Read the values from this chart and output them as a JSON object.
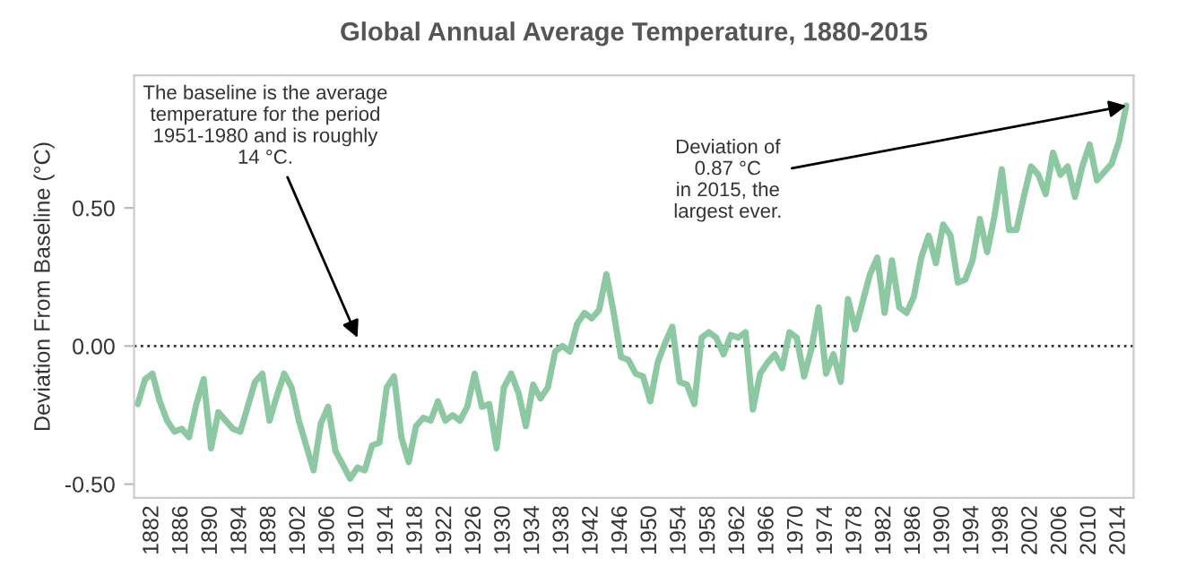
{
  "chart_data": {
    "type": "line",
    "title": "Global Annual Average Temperature, 1880-2015",
    "ylabel": "Deviation From Baseline (°C)",
    "x": [
      1880,
      1881,
      1882,
      1883,
      1884,
      1885,
      1886,
      1887,
      1888,
      1889,
      1890,
      1891,
      1892,
      1893,
      1894,
      1895,
      1896,
      1897,
      1898,
      1899,
      1900,
      1901,
      1902,
      1903,
      1904,
      1905,
      1906,
      1907,
      1908,
      1909,
      1910,
      1911,
      1912,
      1913,
      1914,
      1915,
      1916,
      1917,
      1918,
      1919,
      1920,
      1921,
      1922,
      1923,
      1924,
      1925,
      1926,
      1927,
      1928,
      1929,
      1930,
      1931,
      1932,
      1933,
      1934,
      1935,
      1936,
      1937,
      1938,
      1939,
      1940,
      1941,
      1942,
      1943,
      1944,
      1945,
      1946,
      1947,
      1948,
      1949,
      1950,
      1951,
      1952,
      1953,
      1954,
      1955,
      1956,
      1957,
      1958,
      1959,
      1960,
      1961,
      1962,
      1963,
      1964,
      1965,
      1966,
      1967,
      1968,
      1969,
      1970,
      1971,
      1972,
      1973,
      1974,
      1975,
      1976,
      1977,
      1978,
      1979,
      1980,
      1981,
      1982,
      1983,
      1984,
      1985,
      1986,
      1987,
      1988,
      1989,
      1990,
      1991,
      1992,
      1993,
      1994,
      1995,
      1996,
      1997,
      1998,
      1999,
      2000,
      2001,
      2002,
      2003,
      2004,
      2005,
      2006,
      2007,
      2008,
      2009,
      2010,
      2011,
      2012,
      2013,
      2014,
      2015
    ],
    "series": [
      {
        "color": "#8cc9a3",
        "values": [
          -0.21,
          -0.12,
          -0.1,
          -0.2,
          -0.27,
          -0.31,
          -0.3,
          -0.33,
          -0.21,
          -0.12,
          -0.37,
          -0.24,
          -0.27,
          -0.3,
          -0.31,
          -0.22,
          -0.13,
          -0.1,
          -0.27,
          -0.18,
          -0.1,
          -0.15,
          -0.27,
          -0.36,
          -0.45,
          -0.28,
          -0.22,
          -0.38,
          -0.43,
          -0.48,
          -0.44,
          -0.45,
          -0.36,
          -0.35,
          -0.15,
          -0.11,
          -0.33,
          -0.42,
          -0.29,
          -0.26,
          -0.27,
          -0.2,
          -0.27,
          -0.25,
          -0.27,
          -0.22,
          -0.1,
          -0.22,
          -0.21,
          -0.37,
          -0.15,
          -0.1,
          -0.17,
          -0.29,
          -0.14,
          -0.19,
          -0.15,
          -0.02,
          0.0,
          -0.02,
          0.08,
          0.12,
          0.1,
          0.13,
          0.26,
          0.12,
          -0.04,
          -0.05,
          -0.1,
          -0.11,
          -0.2,
          -0.06,
          0.01,
          0.07,
          -0.13,
          -0.14,
          -0.21,
          0.03,
          0.05,
          0.03,
          -0.03,
          0.04,
          0.03,
          0.05,
          -0.23,
          -0.1,
          -0.06,
          -0.03,
          -0.08,
          0.05,
          0.03,
          -0.11,
          -0.01,
          0.14,
          -0.1,
          -0.03,
          -0.13,
          0.17,
          0.06,
          0.16,
          0.26,
          0.32,
          0.12,
          0.31,
          0.14,
          0.12,
          0.18,
          0.32,
          0.4,
          0.3,
          0.44,
          0.4,
          0.23,
          0.24,
          0.31,
          0.46,
          0.34,
          0.47,
          0.64,
          0.42,
          0.42,
          0.54,
          0.65,
          0.62,
          0.55,
          0.7,
          0.62,
          0.65,
          0.54,
          0.65,
          0.73,
          0.6,
          0.63,
          0.66,
          0.74,
          0.87
        ]
      }
    ],
    "xlim": [
      1879.5,
      2016
    ],
    "xticks": [
      1882,
      1886,
      1890,
      1894,
      1898,
      1902,
      1906,
      1910,
      1914,
      1918,
      1922,
      1926,
      1930,
      1934,
      1938,
      1942,
      1946,
      1950,
      1954,
      1958,
      1962,
      1966,
      1970,
      1974,
      1978,
      1982,
      1986,
      1990,
      1994,
      1998,
      2002,
      2006,
      2010,
      2014
    ],
    "ylim": [
      -0.55,
      0.98
    ],
    "yticks": [
      {
        "value": -0.5,
        "label": "-0.50"
      },
      {
        "value": 0,
        "label": "0.00"
      },
      {
        "value": 0.5,
        "label": "0.50"
      }
    ],
    "ref_lines": [
      {
        "axis": "y",
        "value": 0,
        "color": "#333333",
        "line_style": "dotted"
      }
    ],
    "grid": false,
    "marker": "none",
    "line_style": "solid",
    "annotations": [
      {
        "text": "The baseline is the average\ntemperature for the period\n1951-1980 and is roughly\n14 °C.",
        "x": 1910,
        "y": 0.03
      },
      {
        "text": "Deviation of\n0.87 °C\nin 2015, the\nlargest ever.",
        "x": 2015,
        "y": 0.87
      }
    ]
  }
}
